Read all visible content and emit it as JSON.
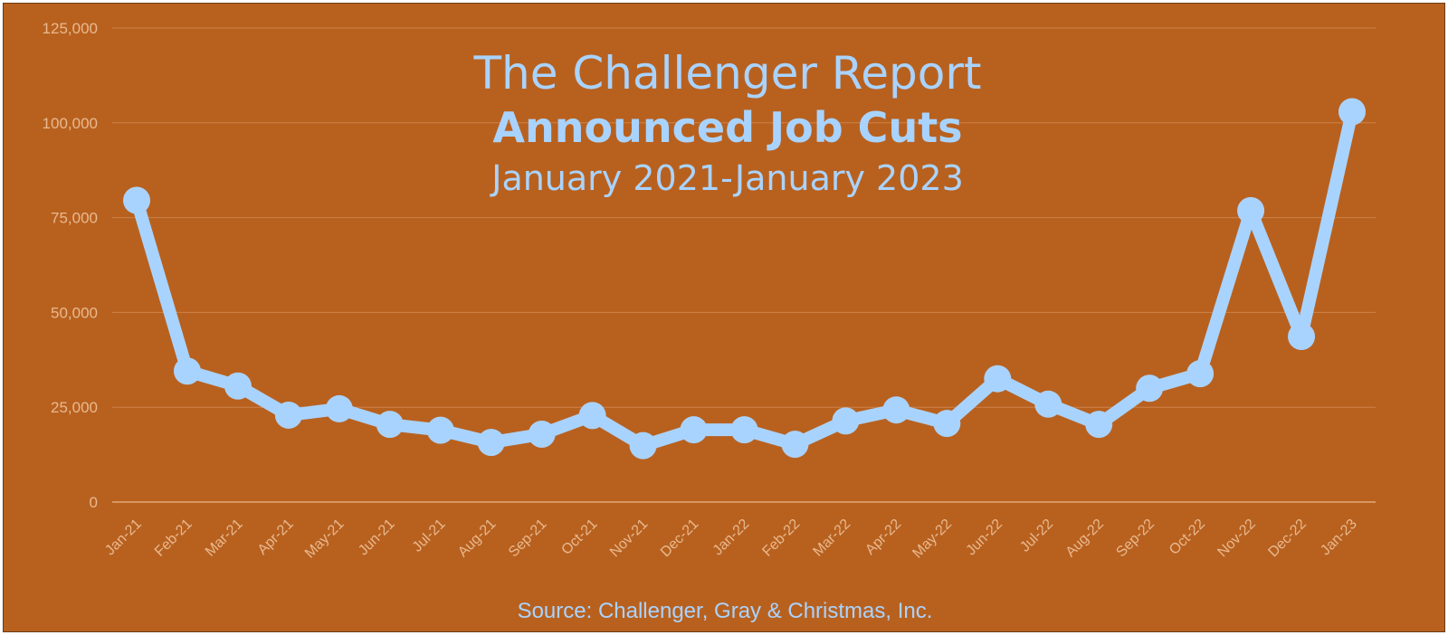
{
  "colors": {
    "background": "#b8611f",
    "line": "#a9d3ff",
    "grid": "#cd8248",
    "axis_text": "#e9b98f"
  },
  "chart_data": {
    "type": "line",
    "title": "The Challenger Report",
    "subtitle_bold": "Announced Job Cuts",
    "subtitle": "January 2021-January 2023",
    "source": "Source: Challenger, Gray & Christmas, Inc.",
    "xlabel": "",
    "ylabel": "",
    "ylim": [
      0,
      125000
    ],
    "yticks": [
      0,
      25000,
      50000,
      75000,
      100000,
      125000
    ],
    "ytick_labels": [
      "0",
      "25,000",
      "50,000",
      "75,000",
      "100,000",
      "125,000"
    ],
    "grid": true,
    "legend": "none",
    "categories": [
      "Jan-21",
      "Feb-21",
      "Mar-21",
      "Apr-21",
      "May-21",
      "Jun-21",
      "Jul-21",
      "Aug-21",
      "Sep-21",
      "Oct-21",
      "Nov-21",
      "Dec-21",
      "Jan-22",
      "Feb-22",
      "Mar-22",
      "Apr-22",
      "May-22",
      "Jun-22",
      "Jul-22",
      "Aug-22",
      "Sep-22",
      "Oct-22",
      "Nov-22",
      "Dec-22",
      "Jan-23"
    ],
    "series": [
      {
        "values": [
          79552,
          34531,
          30603,
          22913,
          24586,
          20476,
          18942,
          15723,
          17895,
          22822,
          14875,
          19052,
          19064,
          15245,
          21387,
          24286,
          20712,
          32517,
          25810,
          20485,
          29989,
          33843,
          76835,
          43651,
          102943
        ]
      }
    ]
  }
}
